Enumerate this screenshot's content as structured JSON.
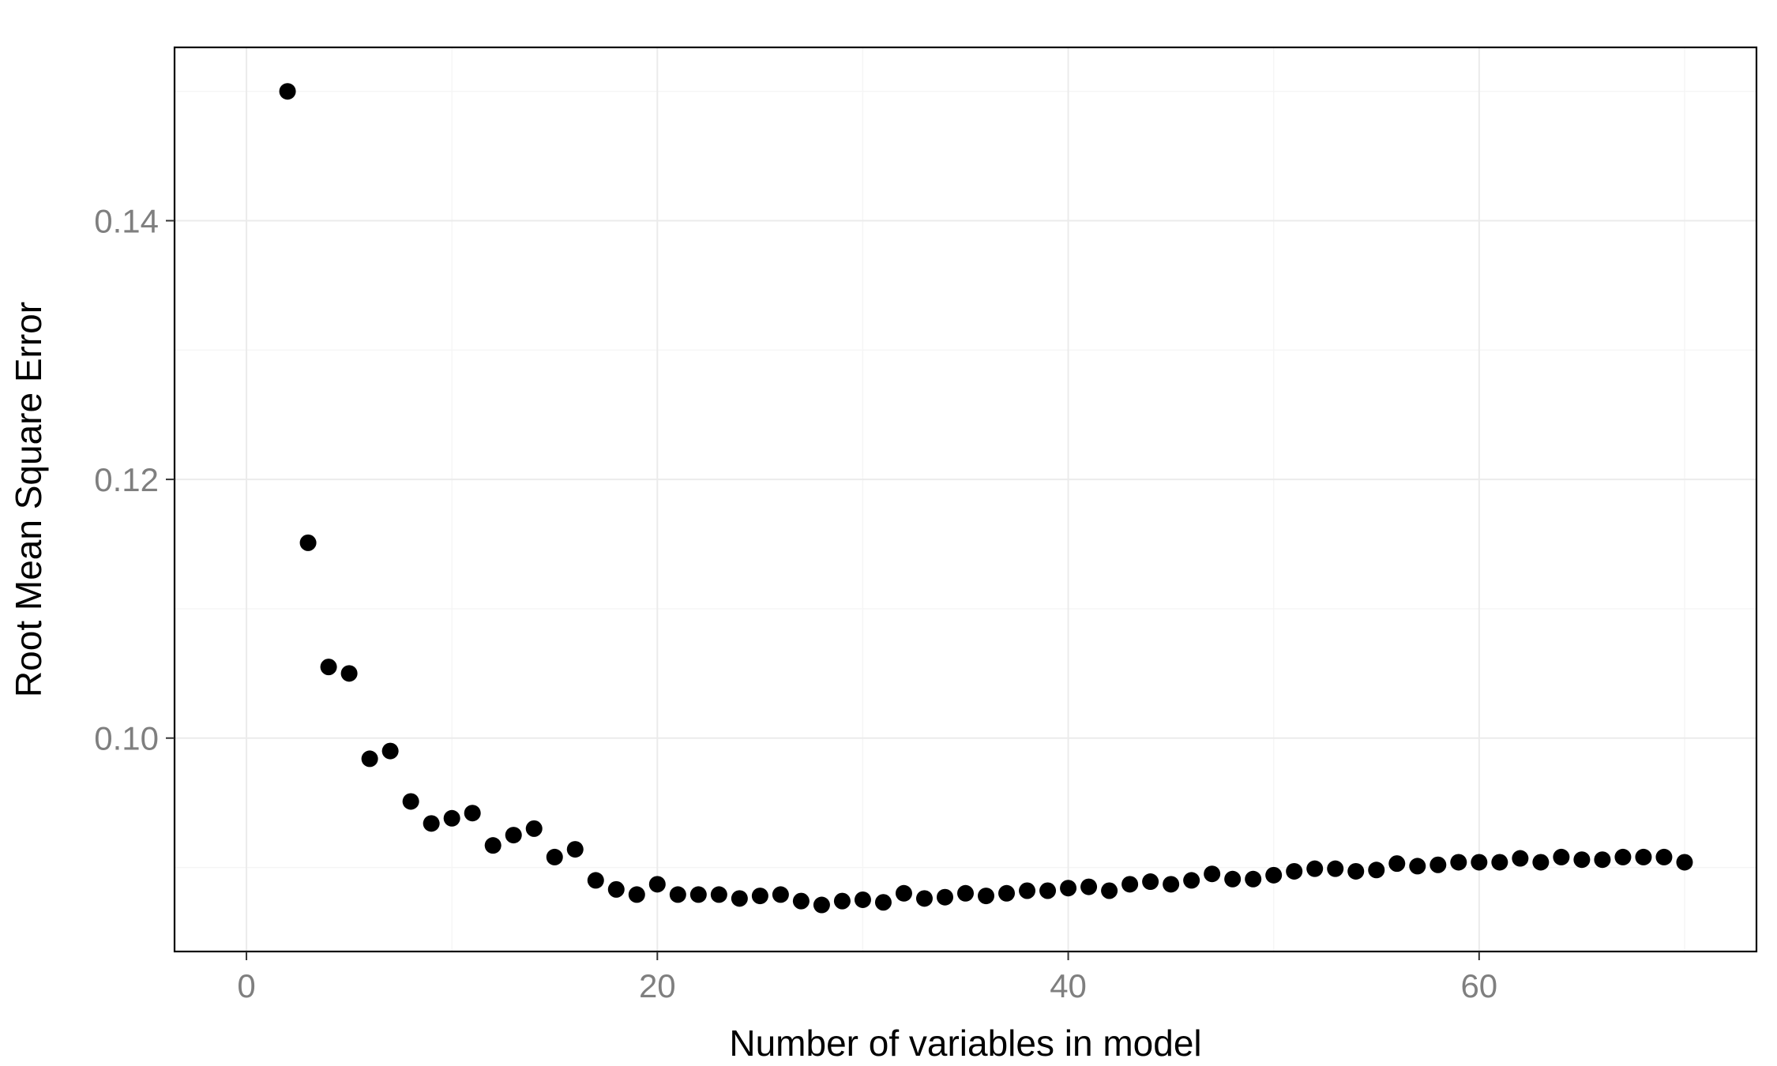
{
  "chart_data": {
    "type": "scatter",
    "title": "",
    "xlabel": "Number of variables in model",
    "ylabel": "Root Mean Square Error",
    "xlim": [
      -3.5,
      73.5
    ],
    "ylim": [
      0.0835,
      0.1534
    ],
    "x_ticks": [
      0,
      20,
      40,
      60
    ],
    "y_ticks": [
      0.1,
      0.12,
      0.14
    ],
    "x_tick_labels": [
      "0",
      "20",
      "40",
      "60"
    ],
    "y_tick_labels": [
      "0.10",
      "0.12",
      "0.14"
    ],
    "grid": true,
    "legend": "none",
    "point_color": "#000000",
    "x": [
      2,
      3,
      4,
      5,
      6,
      7,
      8,
      9,
      10,
      11,
      12,
      13,
      14,
      15,
      16,
      17,
      18,
      19,
      20,
      21,
      22,
      23,
      24,
      25,
      26,
      27,
      28,
      29,
      30,
      31,
      32,
      33,
      34,
      35,
      36,
      37,
      38,
      39,
      40,
      41,
      42,
      43,
      44,
      45,
      46,
      47,
      48,
      49,
      50,
      51,
      52,
      53,
      54,
      55,
      56,
      57,
      58,
      59,
      60,
      61,
      62,
      63,
      64,
      65,
      66,
      67,
      68,
      69,
      70
    ],
    "y": [
      0.15,
      0.1151,
      0.1055,
      0.105,
      0.0984,
      0.099,
      0.0951,
      0.0934,
      0.0938,
      0.0942,
      0.0917,
      0.0925,
      0.093,
      0.0908,
      0.0914,
      0.089,
      0.0883,
      0.0879,
      0.0887,
      0.0879,
      0.0879,
      0.0879,
      0.0876,
      0.0878,
      0.0879,
      0.0874,
      0.0871,
      0.0874,
      0.0875,
      0.0873,
      0.088,
      0.0876,
      0.0877,
      0.088,
      0.0878,
      0.088,
      0.0882,
      0.0882,
      0.0884,
      0.0885,
      0.0882,
      0.0887,
      0.0889,
      0.0887,
      0.089,
      0.0895,
      0.0891,
      0.0891,
      0.0894,
      0.0897,
      0.0899,
      0.0899,
      0.0897,
      0.0898,
      0.0903,
      0.0901,
      0.0902,
      0.0904,
      0.0904,
      0.0904,
      0.0907,
      0.0904,
      0.0908,
      0.0906,
      0.0906,
      0.0908,
      0.0908,
      0.0908,
      0.0904
    ]
  }
}
